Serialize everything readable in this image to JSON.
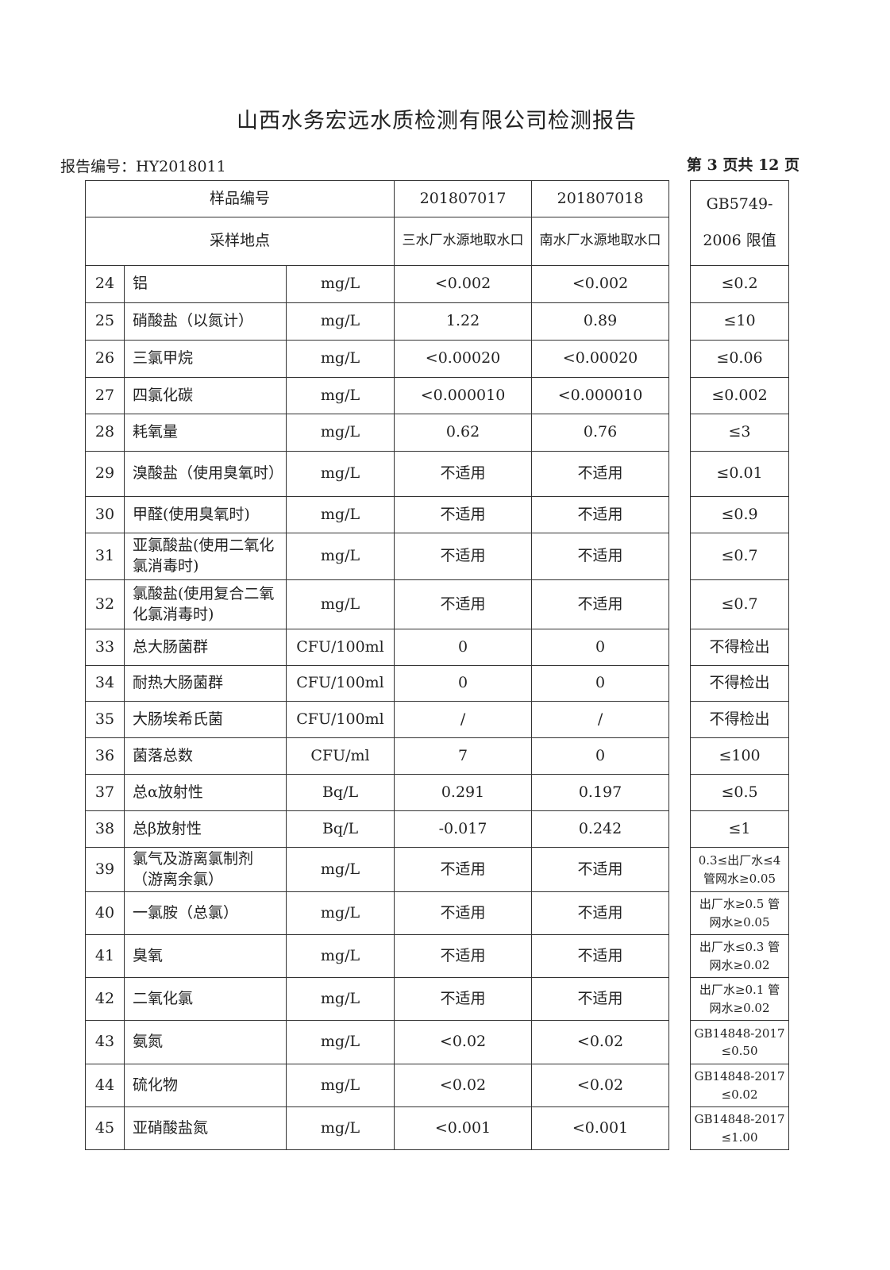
{
  "title": "山西水务宏远水质检测有限公司检测报告",
  "report_no": "报告编号：HY2018011",
  "page_info": "第 3 页共 12 页",
  "header": {
    "sample_no_label": "样品编号",
    "sample_site_label": "采样地点",
    "samples": [
      {
        "no": "201807017",
        "site": "三水厂水源地取水口"
      },
      {
        "no": "201807018",
        "site": "南水厂水源地取水口"
      }
    ],
    "limit_label": "GB5749-2006 限值"
  },
  "rows": [
    {
      "n": "24",
      "name": "铝",
      "unit": "mg/L",
      "v1": "<0.002",
      "v2": "<0.002",
      "limit": "≤0.2"
    },
    {
      "n": "25",
      "name": "硝酸盐（以氮计）",
      "unit": "mg/L",
      "v1": "1.22",
      "v2": "0.89",
      "limit": "≤10"
    },
    {
      "n": "26",
      "name": "三氯甲烷",
      "unit": "mg/L",
      "v1": "<0.00020",
      "v2": "<0.00020",
      "limit": "≤0.06"
    },
    {
      "n": "27",
      "name": "四氯化碳",
      "unit": "mg/L",
      "v1": "<0.000010",
      "v2": "<0.000010",
      "limit": "≤0.002"
    },
    {
      "n": "28",
      "name": "耗氧量",
      "unit": "mg/L",
      "v1": "0.62",
      "v2": "0.76",
      "limit": "≤3"
    },
    {
      "n": "29",
      "name": "溴酸盐（使用臭氧时）",
      "unit": "mg/L",
      "v1": "不适用",
      "v2": "不适用",
      "limit": "≤0.01"
    },
    {
      "n": "30",
      "name": "甲醛(使用臭氧时)",
      "unit": "mg/L",
      "v1": "不适用",
      "v2": "不适用",
      "limit": "≤0.9"
    },
    {
      "n": "31",
      "name": "亚氯酸盐(使用二氧化氯消毒时)",
      "unit": "mg/L",
      "v1": "不适用",
      "v2": "不适用",
      "limit": "≤0.7"
    },
    {
      "n": "32",
      "name": "氯酸盐(使用复合二氧化氯消毒时)",
      "unit": "mg/L",
      "v1": "不适用",
      "v2": "不适用",
      "limit": "≤0.7"
    },
    {
      "n": "33",
      "name": "总大肠菌群",
      "unit": "CFU/100ml",
      "v1": "0",
      "v2": "0",
      "limit": "不得检出"
    },
    {
      "n": "34",
      "name": "耐热大肠菌群",
      "unit": "CFU/100ml",
      "v1": "0",
      "v2": "0",
      "limit": "不得检出"
    },
    {
      "n": "35",
      "name": "大肠埃希氏菌",
      "unit": "CFU/100ml",
      "v1": "/",
      "v2": "/",
      "limit": "不得检出"
    },
    {
      "n": "36",
      "name": "菌落总数",
      "unit": "CFU/ml",
      "v1": "7",
      "v2": "0",
      "limit": "≤100"
    },
    {
      "n": "37",
      "name": "总α放射性",
      "unit": "Bq/L",
      "v1": "0.291",
      "v2": "0.197",
      "limit": "≤0.5"
    },
    {
      "n": "38",
      "name": "总β放射性",
      "unit": "Bq/L",
      "v1": "-0.017",
      "v2": "0.242",
      "limit": "≤1"
    },
    {
      "n": "39",
      "name": "氯气及游离氯制剂（游离余氯）",
      "unit": "mg/L",
      "v1": "不适用",
      "v2": "不适用",
      "limit": "0.3≤出厂水≤4 管网水≥0.05",
      "small": true
    },
    {
      "n": "40",
      "name": "一氯胺（总氯）",
      "unit": "mg/L",
      "v1": "不适用",
      "v2": "不适用",
      "limit": "出厂水≥0.5 管网水≥0.05",
      "small": true
    },
    {
      "n": "41",
      "name": "臭氧",
      "unit": "mg/L",
      "v1": "不适用",
      "v2": "不适用",
      "limit": "出厂水≤0.3 管网水≥0.02",
      "small": true
    },
    {
      "n": "42",
      "name": "二氧化氯",
      "unit": "mg/L",
      "v1": "不适用",
      "v2": "不适用",
      "limit": "出厂水≥0.1 管网水≥0.02",
      "small": true
    },
    {
      "n": "43",
      "name": "氨氮",
      "unit": "mg/L",
      "v1": "<0.02",
      "v2": "<0.02",
      "limit": "GB14848-2017 ≤0.50",
      "small": true
    },
    {
      "n": "44",
      "name": "硫化物",
      "unit": "mg/L",
      "v1": "<0.02",
      "v2": "<0.02",
      "limit": "GB14848-2017 ≤0.02",
      "small": true
    },
    {
      "n": "45",
      "name": "亚硝酸盐氮",
      "unit": "mg/L",
      "v1": "<0.001",
      "v2": "<0.001",
      "limit": "GB14848-2017 ≤1.00",
      "small": true
    }
  ]
}
